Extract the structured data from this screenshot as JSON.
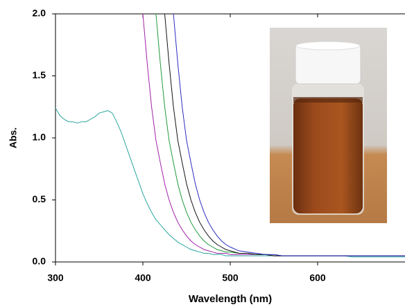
{
  "chart_data": {
    "type": "line",
    "x_label": "Wavelength (nm)",
    "y_label": "Abs.",
    "xlim": [
      300,
      700
    ],
    "ylim": [
      0,
      2
    ],
    "xticks": [
      300,
      400,
      500,
      600
    ],
    "yticks": [
      {
        "value": 0,
        "label": "0.0"
      },
      0.5,
      {
        "value": 1,
        "label": "1.0"
      },
      1.5,
      {
        "value": 2,
        "label": "2.0"
      }
    ],
    "x": [
      300,
      305,
      310,
      315,
      320,
      325,
      330,
      335,
      340,
      345,
      350,
      355,
      360,
      365,
      370,
      375,
      380,
      385,
      390,
      395,
      400,
      405,
      410,
      415,
      420,
      425,
      430,
      435,
      440,
      445,
      450,
      455,
      460,
      465,
      470,
      475,
      480,
      485,
      490,
      495,
      500,
      510,
      520,
      530,
      540,
      550,
      560,
      570,
      580,
      590,
      600,
      610,
      620,
      630,
      640,
      650,
      660,
      670,
      680,
      690,
      700
    ],
    "series": [
      {
        "color": "#2aa6a0",
        "values": [
          1.24,
          1.18,
          1.15,
          1.13,
          1.13,
          1.12,
          1.13,
          1.13,
          1.15,
          1.17,
          1.2,
          1.21,
          1.22,
          1.2,
          1.13,
          1.05,
          0.95,
          0.85,
          0.75,
          0.65,
          0.55,
          0.47,
          0.4,
          0.34,
          0.3,
          0.26,
          0.22,
          0.19,
          0.16,
          0.14,
          0.12,
          0.1,
          0.09,
          0.08,
          0.07,
          0.07,
          0.06,
          0.06,
          0.06,
          0.05,
          0.05,
          0.05,
          0.05,
          0.05,
          0.05,
          0.05,
          0.05,
          0.05,
          0.05,
          0.05,
          0.05,
          0.05,
          0.05,
          0.05,
          0.04,
          0.04,
          0.04,
          0.04,
          0.04,
          0.04,
          0.04
        ]
      },
      {
        "color": "#a020a8",
        "values": [
          null,
          null,
          null,
          null,
          null,
          null,
          null,
          null,
          null,
          null,
          null,
          null,
          null,
          null,
          null,
          null,
          null,
          null,
          null,
          null,
          2.0,
          1.6,
          1.25,
          0.98,
          0.8,
          0.63,
          0.5,
          0.4,
          0.32,
          0.26,
          0.21,
          0.17,
          0.14,
          0.12,
          0.1,
          0.09,
          0.08,
          0.07,
          0.07,
          0.07,
          0.06,
          0.06,
          0.06,
          0.06,
          0.06,
          0.05,
          0.05,
          0.05,
          0.05,
          0.05,
          0.05,
          0.05,
          0.05,
          0.05,
          0.05,
          0.05,
          0.05,
          0.05,
          0.05,
          0.05,
          0.05
        ]
      },
      {
        "color": "#1f9a3a",
        "values": [
          null,
          null,
          null,
          null,
          null,
          null,
          null,
          null,
          null,
          null,
          null,
          null,
          null,
          null,
          null,
          null,
          null,
          null,
          null,
          null,
          null,
          null,
          null,
          2.0,
          1.6,
          1.25,
          0.98,
          0.8,
          0.63,
          0.5,
          0.4,
          0.32,
          0.26,
          0.21,
          0.17,
          0.14,
          0.12,
          0.1,
          0.09,
          0.08,
          0.08,
          0.07,
          0.07,
          0.06,
          0.06,
          0.05,
          0.05,
          0.05,
          0.05,
          0.05,
          0.05,
          0.05,
          0.05,
          0.05,
          0.05,
          0.05,
          0.05,
          0.05,
          0.05,
          0.05,
          0.05
        ]
      },
      {
        "color": "#111111",
        "values": [
          null,
          null,
          null,
          null,
          null,
          null,
          null,
          null,
          null,
          null,
          null,
          null,
          null,
          null,
          null,
          null,
          null,
          null,
          null,
          null,
          null,
          null,
          null,
          null,
          null,
          2.0,
          1.6,
          1.25,
          0.98,
          0.8,
          0.63,
          0.5,
          0.4,
          0.32,
          0.26,
          0.21,
          0.17,
          0.14,
          0.12,
          0.1,
          0.09,
          0.07,
          0.07,
          0.06,
          0.06,
          0.05,
          0.05,
          0.05,
          0.05,
          0.05,
          0.05,
          0.05,
          0.05,
          0.05,
          0.05,
          0.05,
          0.05,
          0.05,
          0.05,
          0.05,
          0.05
        ]
      },
      {
        "color": "#2b2bbf",
        "values": [
          null,
          null,
          null,
          null,
          null,
          null,
          null,
          null,
          null,
          null,
          null,
          null,
          null,
          null,
          null,
          null,
          null,
          null,
          null,
          null,
          null,
          null,
          null,
          null,
          null,
          null,
          null,
          2.0,
          1.6,
          1.25,
          0.98,
          0.8,
          0.63,
          0.5,
          0.4,
          0.32,
          0.26,
          0.21,
          0.17,
          0.14,
          0.12,
          0.09,
          0.08,
          0.07,
          0.06,
          0.06,
          0.05,
          0.05,
          0.05,
          0.05,
          0.05,
          0.05,
          0.05,
          0.05,
          0.05,
          0.05,
          0.05,
          0.05,
          0.05,
          0.05,
          0.05
        ]
      }
    ]
  }
}
